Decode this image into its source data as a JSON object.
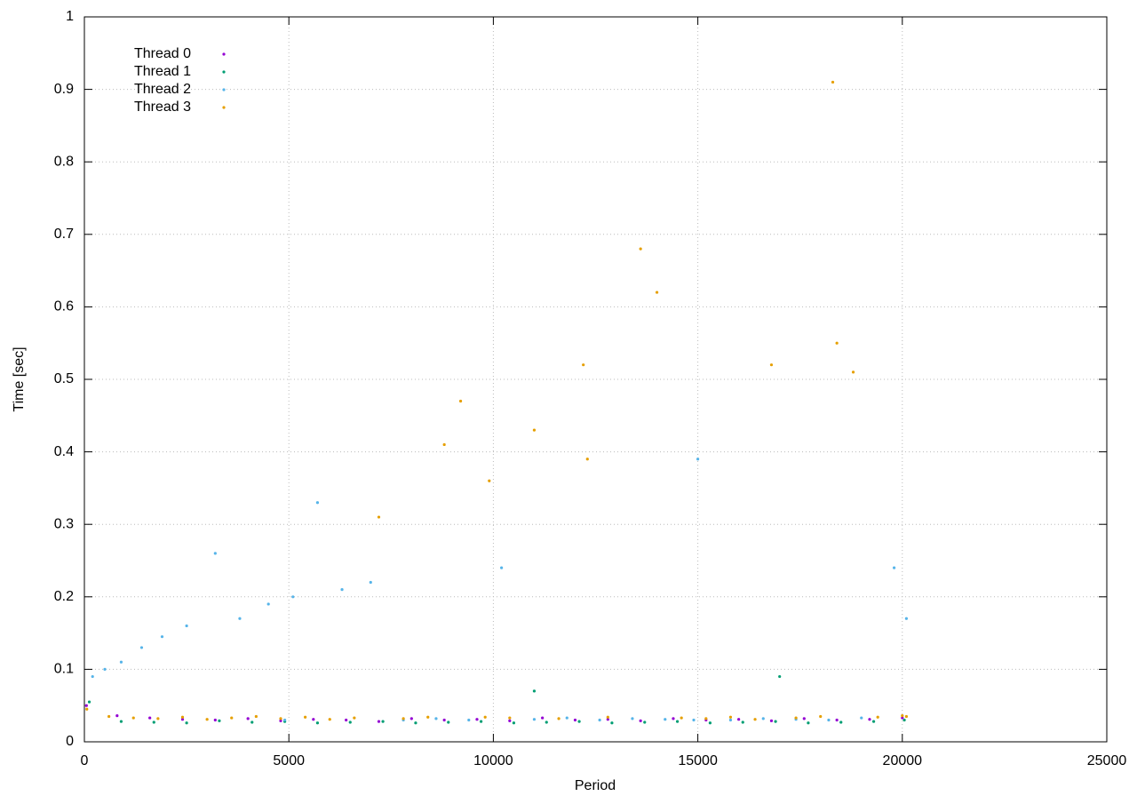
{
  "chart_data": {
    "type": "scatter",
    "xlabel": "Period",
    "ylabel": "Time [sec]",
    "xlim": [
      0,
      25000
    ],
    "xticks": [
      0,
      5000,
      10000,
      15000,
      20000,
      25000
    ],
    "ylim": [
      0,
      1
    ],
    "yticks": [
      0,
      0.1,
      0.2,
      0.3,
      0.4,
      0.5,
      0.6,
      0.7,
      0.8,
      0.9,
      1
    ],
    "grid": true,
    "legend": "top left",
    "series": [
      {
        "name": "Thread 0",
        "color": "#9400d3",
        "x": [
          50,
          800,
          1600,
          2400,
          3200,
          4000,
          4800,
          5600,
          6400,
          7200,
          8000,
          8800,
          9600,
          10400,
          11200,
          12000,
          12800,
          13600,
          14400,
          15200,
          16000,
          16800,
          17600,
          18400,
          19200,
          20000
        ],
        "values": [
          0.05,
          0.036,
          0.033,
          0.031,
          0.03,
          0.032,
          0.029,
          0.031,
          0.03,
          0.028,
          0.032,
          0.03,
          0.031,
          0.029,
          0.033,
          0.03,
          0.031,
          0.029,
          0.032,
          0.03,
          0.031,
          0.029,
          0.032,
          0.03,
          0.031,
          0.033
        ]
      },
      {
        "name": "Thread 1",
        "color": "#009e73",
        "x": [
          120,
          900,
          1700,
          2500,
          3300,
          4100,
          4900,
          5700,
          6500,
          7300,
          8100,
          8900,
          9700,
          10500,
          11300,
          12100,
          12900,
          13700,
          14500,
          15300,
          16100,
          16900,
          17700,
          18500,
          19300,
          20050,
          11000,
          17000
        ],
        "values": [
          0.055,
          0.028,
          0.027,
          0.026,
          0.029,
          0.027,
          0.028,
          0.026,
          0.027,
          0.028,
          0.026,
          0.027,
          0.028,
          0.026,
          0.027,
          0.028,
          0.026,
          0.027,
          0.028,
          0.026,
          0.027,
          0.028,
          0.026,
          0.027,
          0.028,
          0.03,
          0.07,
          0.09
        ]
      },
      {
        "name": "Thread 2",
        "color": "#56b4e9",
        "x": [
          200,
          500,
          900,
          1400,
          1900,
          2500,
          3200,
          3800,
          4500,
          5100,
          5700,
          6300,
          7000,
          7800,
          8600,
          9400,
          10200,
          11000,
          11800,
          12600,
          13400,
          14200,
          15000,
          15800,
          16600,
          17400,
          18200,
          19000,
          19800,
          20100,
          4900,
          14900
        ],
        "values": [
          0.09,
          0.1,
          0.11,
          0.13,
          0.145,
          0.16,
          0.26,
          0.17,
          0.19,
          0.2,
          0.33,
          0.21,
          0.22,
          0.03,
          0.032,
          0.03,
          0.24,
          0.031,
          0.033,
          0.03,
          0.032,
          0.031,
          0.39,
          0.03,
          0.032,
          0.031,
          0.03,
          0.033,
          0.24,
          0.17,
          0.03,
          0.03
        ]
      },
      {
        "name": "Thread 3",
        "color": "#e69f00",
        "x": [
          60,
          600,
          1200,
          1800,
          2400,
          3000,
          3600,
          4200,
          4800,
          5400,
          6000,
          6600,
          7200,
          7800,
          8400,
          8800,
          9200,
          9800,
          10400,
          11000,
          11600,
          12200,
          12800,
          13600,
          14000,
          14600,
          15200,
          15800,
          16400,
          16800,
          17400,
          18000,
          18300,
          18400,
          18800,
          19400,
          20000,
          20100,
          12300,
          9900
        ],
        "values": [
          0.045,
          0.035,
          0.033,
          0.032,
          0.034,
          0.031,
          0.033,
          0.035,
          0.032,
          0.034,
          0.031,
          0.033,
          0.31,
          0.032,
          0.034,
          0.41,
          0.47,
          0.034,
          0.033,
          0.43,
          0.032,
          0.52,
          0.034,
          0.68,
          0.62,
          0.033,
          0.032,
          0.034,
          0.031,
          0.52,
          0.033,
          0.035,
          0.91,
          0.55,
          0.51,
          0.034,
          0.036,
          0.035,
          0.39,
          0.36
        ]
      }
    ]
  }
}
